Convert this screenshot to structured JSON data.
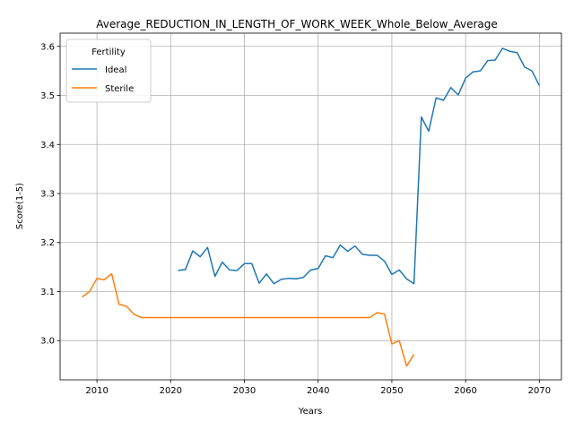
{
  "chart_data": {
    "type": "line",
    "title": "Average_REDUCTION_IN_LENGTH_OF_WORK_WEEK_Whole_Below_Average",
    "xlabel": "Years",
    "ylabel": "Score(1-5)",
    "xlim": [
      2005,
      2073
    ],
    "ylim": [
      2.92,
      3.627
    ],
    "xticks": [
      2010,
      2020,
      2030,
      2040,
      2050,
      2060,
      2070
    ],
    "yticks": [
      3.0,
      3.1,
      3.2,
      3.3,
      3.4,
      3.5,
      3.6
    ],
    "grid": true,
    "legend": {
      "title": "Fertility",
      "placement": "top-left"
    },
    "series": [
      {
        "name": "Ideal",
        "color": "#1f77b4",
        "x": [
          2021,
          2022,
          2023,
          2024,
          2025,
          2026,
          2027,
          2028,
          2029,
          2030,
          2031,
          2032,
          2033,
          2034,
          2035,
          2036,
          2037,
          2038,
          2039,
          2040,
          2041,
          2042,
          2043,
          2044,
          2045,
          2046,
          2047,
          2048,
          2049,
          2050,
          2051,
          2052,
          2053,
          2054,
          2055,
          2056,
          2057,
          2058,
          2059,
          2060,
          2061,
          2062,
          2063,
          2064,
          2065,
          2066,
          2067,
          2068,
          2069,
          2070
        ],
        "y": [
          3.143,
          3.145,
          3.183,
          3.171,
          3.19,
          3.131,
          3.16,
          3.144,
          3.143,
          3.157,
          3.157,
          3.117,
          3.136,
          3.116,
          3.125,
          3.127,
          3.126,
          3.129,
          3.144,
          3.147,
          3.173,
          3.169,
          3.195,
          3.182,
          3.193,
          3.176,
          3.174,
          3.174,
          3.162,
          3.135,
          3.144,
          3.126,
          3.116,
          3.456,
          3.427,
          3.495,
          3.49,
          3.516,
          3.501,
          3.535,
          3.548,
          3.55,
          3.571,
          3.572,
          3.596,
          3.59,
          3.587,
          3.558,
          3.55,
          3.52
        ]
      },
      {
        "name": "Sterile",
        "color": "#ff7f0e",
        "x": [
          2008,
          2009,
          2010,
          2011,
          2012,
          2013,
          2014,
          2015,
          2016,
          2017,
          2018,
          2019,
          2020,
          2021,
          2022,
          2023,
          2024,
          2025,
          2026,
          2027,
          2028,
          2029,
          2030,
          2031,
          2032,
          2033,
          2034,
          2035,
          2036,
          2037,
          2038,
          2039,
          2040,
          2041,
          2042,
          2043,
          2044,
          2045,
          2046,
          2047,
          2048,
          2049,
          2050,
          2051,
          2052,
          2053
        ],
        "y": [
          3.089,
          3.1,
          3.127,
          3.124,
          3.136,
          3.074,
          3.07,
          3.054,
          3.047,
          3.047,
          3.047,
          3.047,
          3.047,
          3.047,
          3.047,
          3.047,
          3.047,
          3.047,
          3.047,
          3.047,
          3.047,
          3.047,
          3.047,
          3.047,
          3.047,
          3.047,
          3.047,
          3.047,
          3.047,
          3.047,
          3.047,
          3.047,
          3.047,
          3.047,
          3.047,
          3.047,
          3.047,
          3.047,
          3.047,
          3.047,
          3.057,
          3.054,
          2.993,
          3.0,
          2.948,
          2.972
        ]
      }
    ]
  }
}
